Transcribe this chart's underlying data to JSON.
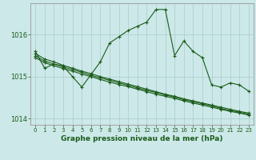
{
  "title": "Graphe pression niveau de la mer (hPa)",
  "bg_color": "#cce8e8",
  "grid_color": "#aacccc",
  "line_color": "#1a5c1a",
  "xlim": [
    -0.5,
    23.5
  ],
  "ylim": [
    1013.85,
    1016.75
  ],
  "yticks": [
    1014,
    1015,
    1016
  ],
  "xticks": [
    0,
    1,
    2,
    3,
    4,
    5,
    6,
    7,
    8,
    9,
    10,
    11,
    12,
    13,
    14,
    15,
    16,
    17,
    18,
    19,
    20,
    21,
    22,
    23
  ],
  "main_y": [
    1015.6,
    1015.2,
    1015.3,
    1015.25,
    1015.0,
    1014.75,
    1015.05,
    1015.35,
    1015.8,
    1015.95,
    1016.1,
    1016.2,
    1016.3,
    1016.6,
    1016.6,
    1015.5,
    1015.85,
    1015.6,
    1015.45,
    1014.8,
    1014.75,
    1014.85,
    1014.8,
    1014.65
  ],
  "trend1_y": [
    1015.55,
    1015.42,
    1015.35,
    1015.27,
    1015.2,
    1015.13,
    1015.07,
    1015.0,
    1014.94,
    1014.88,
    1014.82,
    1014.76,
    1014.7,
    1014.64,
    1014.58,
    1014.53,
    1014.47,
    1014.42,
    1014.37,
    1014.32,
    1014.27,
    1014.22,
    1014.17,
    1014.13
  ],
  "trend2_y": [
    1015.45,
    1015.33,
    1015.26,
    1015.19,
    1015.13,
    1015.06,
    1015.0,
    1014.93,
    1014.87,
    1014.81,
    1014.76,
    1014.7,
    1014.64,
    1014.58,
    1014.53,
    1014.48,
    1014.42,
    1014.37,
    1014.32,
    1014.27,
    1014.22,
    1014.17,
    1014.13,
    1014.08
  ],
  "trend3_y": [
    1015.5,
    1015.37,
    1015.3,
    1015.23,
    1015.17,
    1015.1,
    1015.03,
    1014.97,
    1014.91,
    1014.85,
    1014.79,
    1014.73,
    1014.67,
    1014.62,
    1014.56,
    1014.51,
    1014.45,
    1014.4,
    1014.35,
    1014.3,
    1014.24,
    1014.19,
    1014.15,
    1014.1
  ]
}
